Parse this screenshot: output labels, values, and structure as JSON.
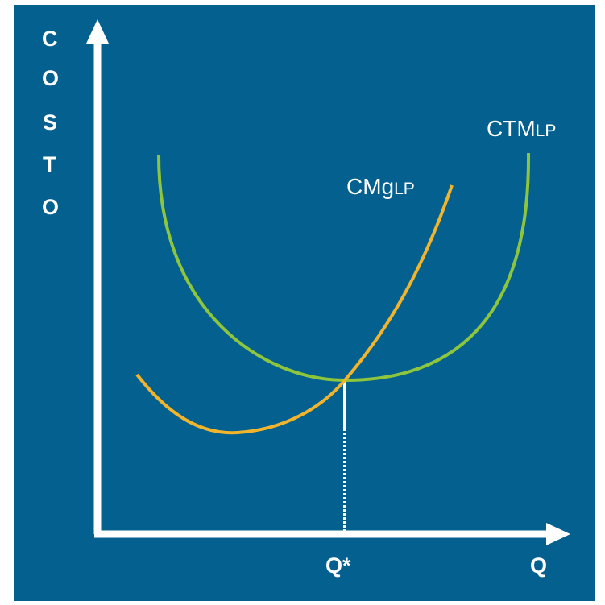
{
  "colors": {
    "background": "#04608f",
    "frame": "#ffffff",
    "axis": "#ffffff",
    "average_cost_curve": "#8dc53c",
    "marginal_cost_curve": "#f2b42a",
    "reference_line": "#ffffff"
  },
  "y_axis": {
    "letters": [
      "C",
      "O",
      "S",
      "T",
      "O"
    ]
  },
  "x_axis": {
    "label": "Q",
    "marked_quantity_label": "Q*"
  },
  "curves": {
    "average_cost": {
      "main": "CTM",
      "sub": "LP"
    },
    "marginal_cost": {
      "main": "CMg",
      "sub": "LP"
    }
  }
}
